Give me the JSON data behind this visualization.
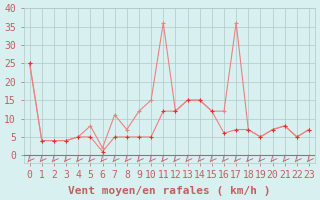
{
  "x": [
    0,
    1,
    2,
    3,
    4,
    5,
    6,
    7,
    8,
    9,
    10,
    11,
    12,
    13,
    14,
    15,
    16,
    17,
    18,
    19,
    20,
    21,
    22,
    23
  ],
  "wind_avg": [
    25,
    4,
    4,
    4,
    5,
    5,
    1,
    5,
    5,
    5,
    5,
    12,
    12,
    15,
    15,
    12,
    6,
    7,
    7,
    5,
    7,
    8,
    5,
    7
  ],
  "wind_gust": [
    25,
    4,
    4,
    4,
    5,
    8,
    2,
    11,
    7,
    12,
    15,
    36,
    12,
    15,
    15,
    12,
    12,
    36,
    7,
    5,
    7,
    8,
    5,
    7
  ],
  "line_color": "#f08080",
  "marker_color": "#f08080",
  "marker_color_dark": "#e03030",
  "background_color": "#d8f0f0",
  "grid_color": "#b0c8c8",
  "axis_color": "#c06060",
  "xlabel": "Vent moyen/en rafales ( km/h )",
  "ylabel": "",
  "ylim": [
    -2,
    40
  ],
  "xlim": [
    -0.5,
    23.5
  ],
  "title_fontsize": 9,
  "label_fontsize": 7
}
